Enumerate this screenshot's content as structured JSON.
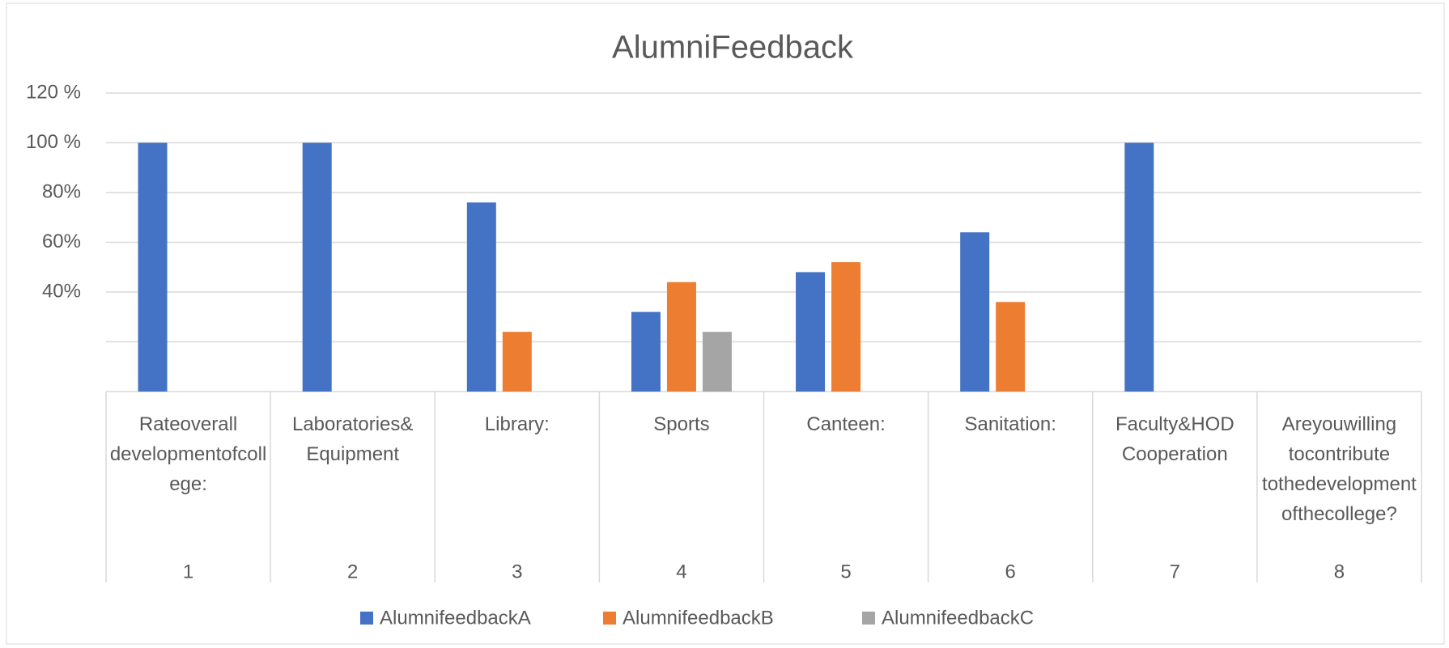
{
  "chart_data": {
    "type": "bar",
    "title": "AlumniFeedback",
    "categories": [
      "1",
      "2",
      "3",
      "4",
      "5",
      "6",
      "7",
      "8"
    ],
    "category_labels": [
      "Rateoverall developmentofcollege:",
      "Laboratories& Equipment",
      "Library:",
      "Sports",
      "Canteen:",
      "Sanitation:",
      "Faculty&HOD Cooperation",
      "Areyouwilling tocontribute tothedevelopmentofthecollege?"
    ],
    "series": [
      {
        "name": "AlumnifeedbackA",
        "color": "#4472c4",
        "values": [
          100,
          100,
          76,
          32,
          48,
          64,
          100,
          null
        ]
      },
      {
        "name": "AlumnifeedbackB",
        "color": "#ed7d31",
        "values": [
          null,
          null,
          24,
          44,
          52,
          36,
          null,
          null
        ]
      },
      {
        "name": "AlumnifeedbackC",
        "color": "#a5a5a5",
        "values": [
          null,
          null,
          null,
          24,
          null,
          null,
          null,
          null
        ]
      }
    ],
    "ylim": [
      0,
      120
    ],
    "yticks": [
      {
        "value": 0,
        "label": null
      },
      {
        "value": 20,
        "label": null
      },
      {
        "value": 40,
        "label": "40%"
      },
      {
        "value": 60,
        "label": "60%"
      },
      {
        "value": 80,
        "label": "80%"
      },
      {
        "value": 100,
        "label": "100 %"
      },
      {
        "value": 120,
        "label": "120 %"
      }
    ],
    "grid": true,
    "legend": "bottom"
  }
}
